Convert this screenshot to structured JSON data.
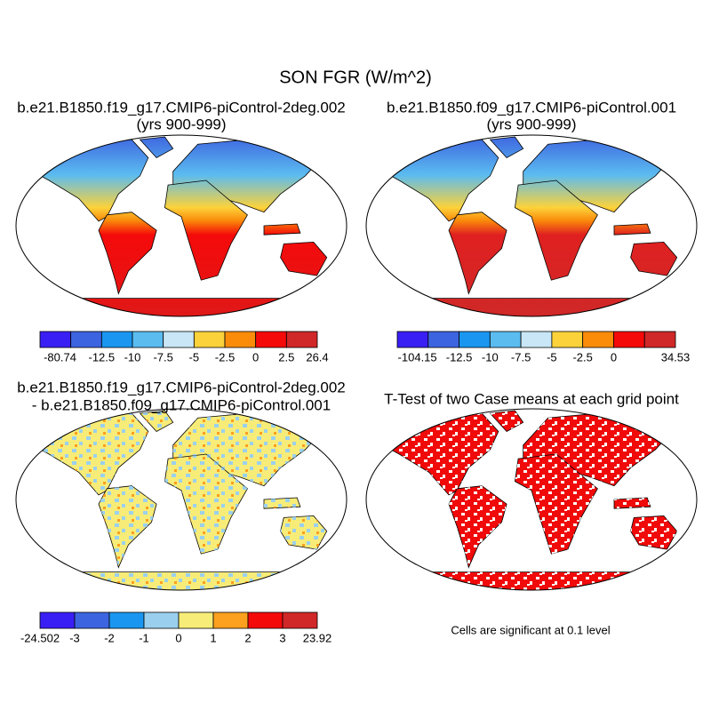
{
  "title": "SON FGR (W/m^2)",
  "panels": [
    {
      "title_lines": [
        "b.e21.B1850.f19_g17.CMIP6-piControl-2deg.002",
        "(yrs 900-999)"
      ],
      "colorbar": {
        "labels": [
          -80.74,
          -12.5,
          -10,
          -7.5,
          -5,
          -2.5,
          0,
          2.5,
          26.4
        ],
        "colors": [
          "#3a1ff5",
          "#3d64e0",
          "#1a96f0",
          "#5bbcf0",
          "#c8e6f5",
          "#fcd23a",
          "#fa8c0a",
          "#f50a0a",
          "#d02828"
        ]
      }
    },
    {
      "title_lines": [
        "b.e21.B1850.f09_g17.CMIP6-piControl.001",
        "(yrs 900-999)"
      ],
      "colorbar": {
        "labels": [
          -104.15,
          -12.5,
          -10,
          -7.5,
          -5,
          -2.5,
          0,
          null,
          34.53
        ],
        "colors": [
          "#3a1ff5",
          "#3d64e0",
          "#1a96f0",
          "#5bbcf0",
          "#c8e6f5",
          "#fcd23a",
          "#fa8c0a",
          "#f50a0a",
          "#d02828"
        ]
      }
    },
    {
      "title_lines": [
        "b.e21.B1850.f19_g17.CMIP6-piControl-2deg.002",
        "- b.e21.B1850.f09_g17.CMIP6-piControl.001"
      ],
      "colorbar": {
        "labels": [
          -24.502,
          -3,
          -2,
          -1,
          0,
          1,
          2,
          3,
          23.92
        ],
        "colors": [
          "#3a1ff5",
          "#3d64e0",
          "#1a96f0",
          "#9ad0ee",
          "#f8ec78",
          "#fca020",
          "#f50a0a",
          "#d02828"
        ]
      }
    }
  ],
  "ttest": {
    "title": "T-Test of two Case means at each grid point",
    "note": "Cells are significant at 0.1 level"
  }
}
